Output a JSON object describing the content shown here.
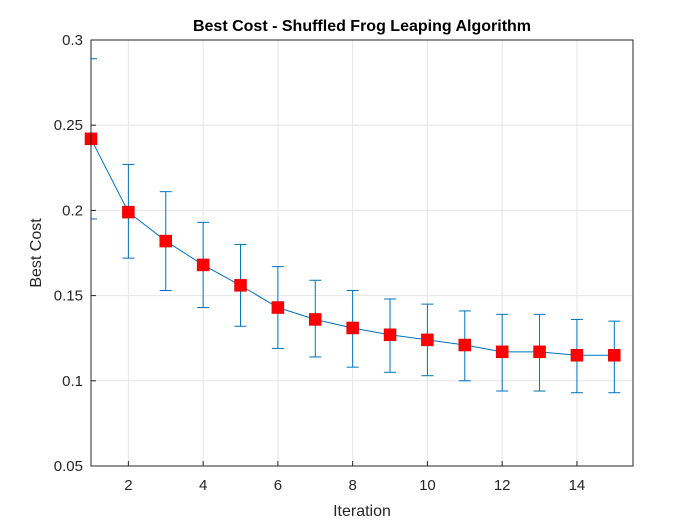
{
  "chart_data": {
    "type": "line",
    "title": "Best Cost - Shuffled Frog Leaping Algorithm",
    "xlabel": "Iteration",
    "ylabel": "Best Cost",
    "xlim": [
      1,
      15.5
    ],
    "ylim": [
      0.05,
      0.3
    ],
    "xticks": [
      2,
      4,
      6,
      8,
      10,
      12,
      14
    ],
    "yticks": [
      0.05,
      0.1,
      0.15,
      0.2,
      0.25,
      0.3
    ],
    "grid": true,
    "series": [
      {
        "x": [
          1,
          2,
          3,
          4,
          5,
          6,
          7,
          8,
          9,
          10,
          11,
          12,
          13,
          14,
          15
        ],
        "y": [
          0.242,
          0.199,
          0.182,
          0.168,
          0.156,
          0.143,
          0.136,
          0.131,
          0.127,
          0.124,
          0.121,
          0.117,
          0.117,
          0.115,
          0.115
        ],
        "err_low": [
          0.195,
          0.172,
          0.153,
          0.143,
          0.132,
          0.119,
          0.114,
          0.108,
          0.105,
          0.103,
          0.1,
          0.094,
          0.094,
          0.093,
          0.093
        ],
        "err_high": [
          0.289,
          0.227,
          0.211,
          0.193,
          0.18,
          0.167,
          0.159,
          0.153,
          0.148,
          0.145,
          0.141,
          0.139,
          0.139,
          0.136,
          0.135
        ],
        "line_color": "#0072BD",
        "marker_color": "#FF0000",
        "marker": "square"
      }
    ]
  }
}
